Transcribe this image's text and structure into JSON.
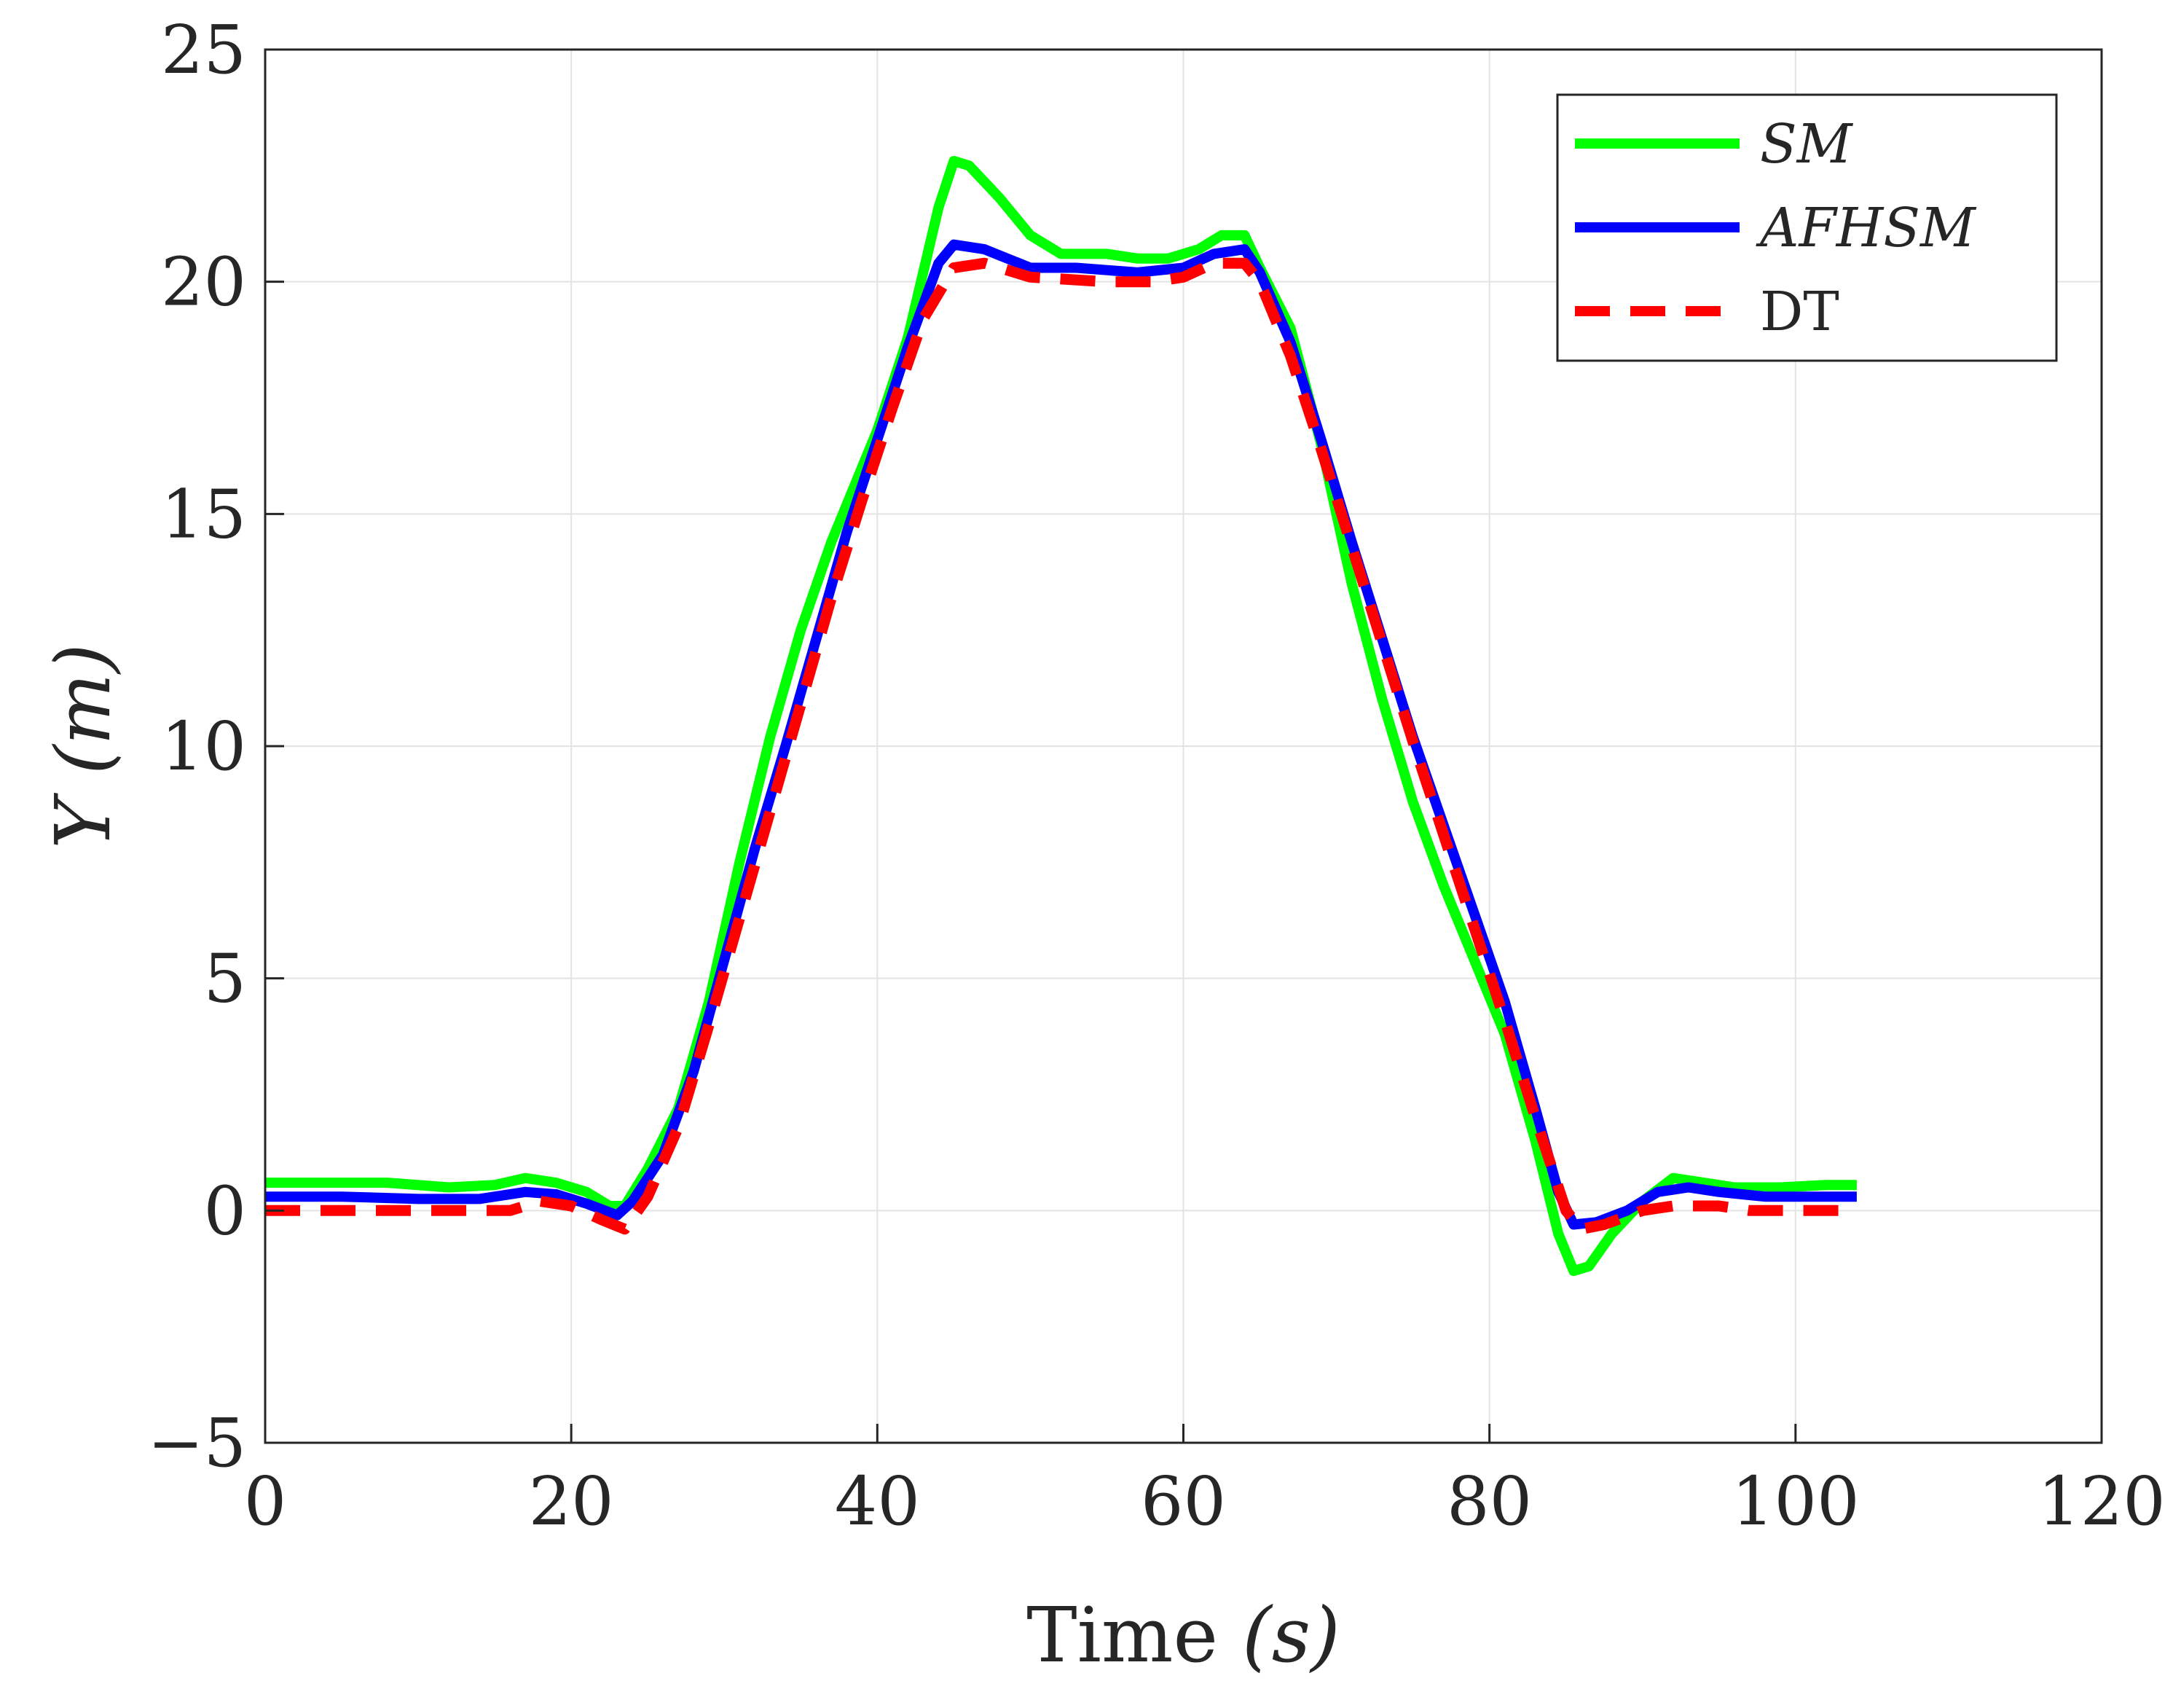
{
  "chart_data": {
    "type": "line",
    "title": "",
    "xlabel": {
      "prefix": "Time ",
      "var": "(s)"
    },
    "ylabel": {
      "var": "Y (m)"
    },
    "xlim": [
      0,
      120
    ],
    "ylim": [
      -5,
      25
    ],
    "xticks": [
      0,
      20,
      40,
      60,
      80,
      100,
      120
    ],
    "yticks": [
      -5,
      0,
      5,
      10,
      15,
      20,
      25
    ],
    "xtick_labels": [
      "0",
      "20",
      "40",
      "60",
      "80",
      "100",
      "120"
    ],
    "ytick_labels": [
      "−5",
      "0",
      "5",
      "10",
      "15",
      "20",
      "25"
    ],
    "grid": true,
    "legend_position": "top-right",
    "series": [
      {
        "name": "SM",
        "color": "#00ff00",
        "style": "solid",
        "points": [
          [
            0,
            0.6
          ],
          [
            5,
            0.6
          ],
          [
            8,
            0.6
          ],
          [
            12,
            0.5
          ],
          [
            15,
            0.55
          ],
          [
            17,
            0.7
          ],
          [
            19,
            0.6
          ],
          [
            21,
            0.4
          ],
          [
            22.5,
            0.1
          ],
          [
            23.5,
            0.1
          ],
          [
            25,
            0.9
          ],
          [
            27,
            2.2
          ],
          [
            29,
            4.5
          ],
          [
            31,
            7.5
          ],
          [
            33,
            10.2
          ],
          [
            35,
            12.5
          ],
          [
            37,
            14.4
          ],
          [
            40,
            16.8
          ],
          [
            42,
            18.8
          ],
          [
            44,
            21.6
          ],
          [
            45,
            22.6
          ],
          [
            46,
            22.5
          ],
          [
            48,
            21.8
          ],
          [
            50,
            21.0
          ],
          [
            52,
            20.6
          ],
          [
            55,
            20.6
          ],
          [
            57,
            20.5
          ],
          [
            59,
            20.5
          ],
          [
            61,
            20.7
          ],
          [
            62.5,
            21.0
          ],
          [
            64,
            21.0
          ],
          [
            65,
            20.3
          ],
          [
            67,
            19.0
          ],
          [
            69,
            16.5
          ],
          [
            71,
            13.5
          ],
          [
            73,
            11.0
          ],
          [
            75,
            8.8
          ],
          [
            77,
            7.0
          ],
          [
            79,
            5.4
          ],
          [
            81,
            3.8
          ],
          [
            83,
            1.5
          ],
          [
            84.5,
            -0.5
          ],
          [
            85.5,
            -1.3
          ],
          [
            86.5,
            -1.2
          ],
          [
            88,
            -0.5
          ],
          [
            90,
            0.2
          ],
          [
            92,
            0.7
          ],
          [
            94,
            0.6
          ],
          [
            96,
            0.5
          ],
          [
            99,
            0.5
          ],
          [
            102,
            0.55
          ],
          [
            104,
            0.55
          ]
        ]
      },
      {
        "name": "AFHSM",
        "color": "#0000ff",
        "style": "solid",
        "points": [
          [
            0,
            0.3
          ],
          [
            5,
            0.3
          ],
          [
            10,
            0.25
          ],
          [
            14,
            0.25
          ],
          [
            17,
            0.4
          ],
          [
            19,
            0.35
          ],
          [
            21,
            0.15
          ],
          [
            23,
            -0.1
          ],
          [
            24,
            0.2
          ],
          [
            26,
            1.2
          ],
          [
            28,
            3.0
          ],
          [
            30,
            5.4
          ],
          [
            32,
            7.8
          ],
          [
            34,
            10.0
          ],
          [
            36,
            12.3
          ],
          [
            38,
            14.6
          ],
          [
            40,
            16.6
          ],
          [
            42,
            18.6
          ],
          [
            44,
            20.4
          ],
          [
            45,
            20.8
          ],
          [
            47,
            20.7
          ],
          [
            50,
            20.3
          ],
          [
            53,
            20.3
          ],
          [
            57,
            20.2
          ],
          [
            60,
            20.3
          ],
          [
            62,
            20.6
          ],
          [
            64,
            20.7
          ],
          [
            65,
            20.2
          ],
          [
            67,
            18.7
          ],
          [
            69,
            16.6
          ],
          [
            71,
            14.4
          ],
          [
            73,
            12.3
          ],
          [
            75,
            10.2
          ],
          [
            77,
            8.3
          ],
          [
            79,
            6.4
          ],
          [
            81,
            4.5
          ],
          [
            83,
            2.2
          ],
          [
            84.5,
            0.4
          ],
          [
            85.5,
            -0.3
          ],
          [
            87,
            -0.25
          ],
          [
            89,
            0.0
          ],
          [
            91,
            0.4
          ],
          [
            93,
            0.5
          ],
          [
            95,
            0.4
          ],
          [
            98,
            0.3
          ],
          [
            104,
            0.3
          ]
        ]
      },
      {
        "name": "DT",
        "color": "#ff0000",
        "style": "dashed",
        "points": [
          [
            0,
            0.0
          ],
          [
            13,
            0.0
          ],
          [
            16,
            0.0
          ],
          [
            18,
            0.2
          ],
          [
            20,
            0.1
          ],
          [
            22,
            -0.2
          ],
          [
            23.5,
            -0.4
          ],
          [
            25,
            0.3
          ],
          [
            27,
            1.8
          ],
          [
            29,
            4.0
          ],
          [
            31,
            6.3
          ],
          [
            33,
            8.6
          ],
          [
            35,
            10.9
          ],
          [
            37,
            13.2
          ],
          [
            39,
            15.3
          ],
          [
            41,
            17.3
          ],
          [
            43,
            19.2
          ],
          [
            45,
            20.3
          ],
          [
            47,
            20.4
          ],
          [
            50,
            20.1
          ],
          [
            55,
            20.0
          ],
          [
            58,
            20.0
          ],
          [
            60,
            20.1
          ],
          [
            62,
            20.4
          ],
          [
            64,
            20.4
          ],
          [
            65,
            20.0
          ],
          [
            67,
            18.4
          ],
          [
            69,
            16.4
          ],
          [
            71,
            14.3
          ],
          [
            73,
            12.2
          ],
          [
            75,
            10.1
          ],
          [
            77,
            8.1
          ],
          [
            79,
            6.1
          ],
          [
            81,
            4.1
          ],
          [
            83,
            2.0
          ],
          [
            85,
            0.0
          ],
          [
            86,
            -0.4
          ],
          [
            87.5,
            -0.3
          ],
          [
            90,
            0.0
          ],
          [
            92,
            0.1
          ],
          [
            95,
            0.1
          ],
          [
            97,
            0.0
          ],
          [
            104,
            0.0
          ]
        ]
      }
    ]
  },
  "legend": {
    "items": [
      {
        "label": "SM",
        "italic": true
      },
      {
        "label": "AFHSM",
        "italic": true
      },
      {
        "label": "DT",
        "italic": false
      }
    ]
  },
  "colors": {
    "axis": "#262626",
    "grid": "#e3e3e3",
    "background": "#ffffff"
  }
}
